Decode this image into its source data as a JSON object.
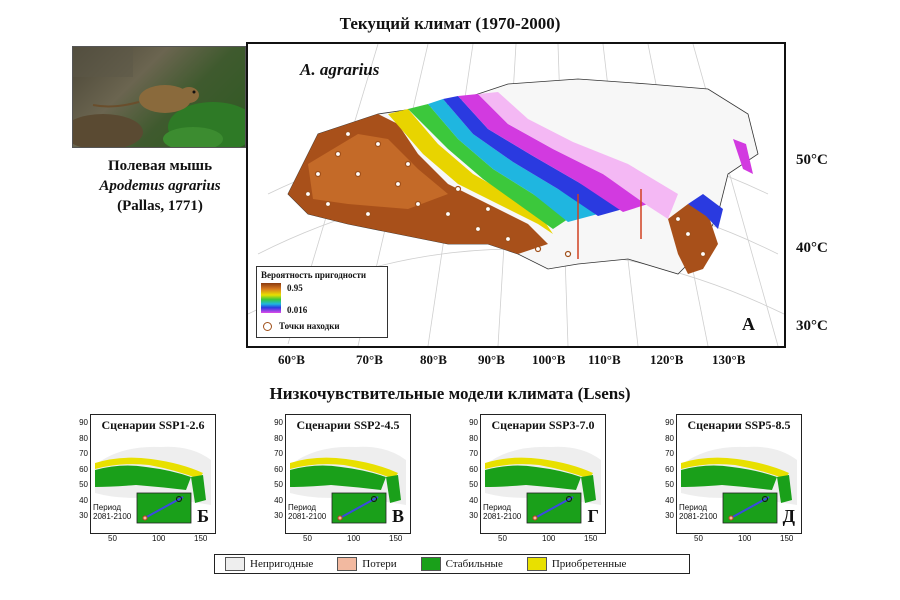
{
  "title": "Текущий климат (1970-2000)",
  "species": {
    "common_name": "Полевая мышь",
    "latin_name": "Apodemus agrarius",
    "author": "(Pallas, 1771)"
  },
  "main_map": {
    "label": "A. agrarius",
    "panel_letter": "A",
    "legend": {
      "title": "Вероятность пригодности",
      "max": "0.95",
      "min": "0.016",
      "points_label": "Точки находки"
    },
    "lat_labels": [
      "50°C",
      "40°C",
      "30°C"
    ],
    "lon_labels": [
      "60°B",
      "70°B",
      "80°B",
      "90°B",
      "100°B",
      "110°B",
      "120°B",
      "130°B"
    ]
  },
  "subtitle": "Низкочувствительные модели климата (Lsens)",
  "scenarios": [
    {
      "title": "Сценарии SSP1-2.6",
      "letter": "Б"
    },
    {
      "title": "Сценарии SSP2-4.5",
      "letter": "В"
    },
    {
      "title": "Сценарии SSP3-7.0",
      "letter": "Г"
    },
    {
      "title": "Сценарии SSP5-8.5",
      "letter": "Д"
    }
  ],
  "period_label": "Период",
  "period_value": "2081-2100",
  "y_ticks": [
    "90",
    "80",
    "70",
    "60",
    "50",
    "40",
    "30"
  ],
  "x_ticks": [
    "50",
    "100",
    "150"
  ],
  "legend": [
    {
      "label": "Непригодные",
      "color": "#eeeeee"
    },
    {
      "label": "Потери",
      "color": "#f2b9a0"
    },
    {
      "label": "Стабильные",
      "color": "#1aa01a"
    },
    {
      "label": "Приобретенные",
      "color": "#e8e000"
    }
  ]
}
